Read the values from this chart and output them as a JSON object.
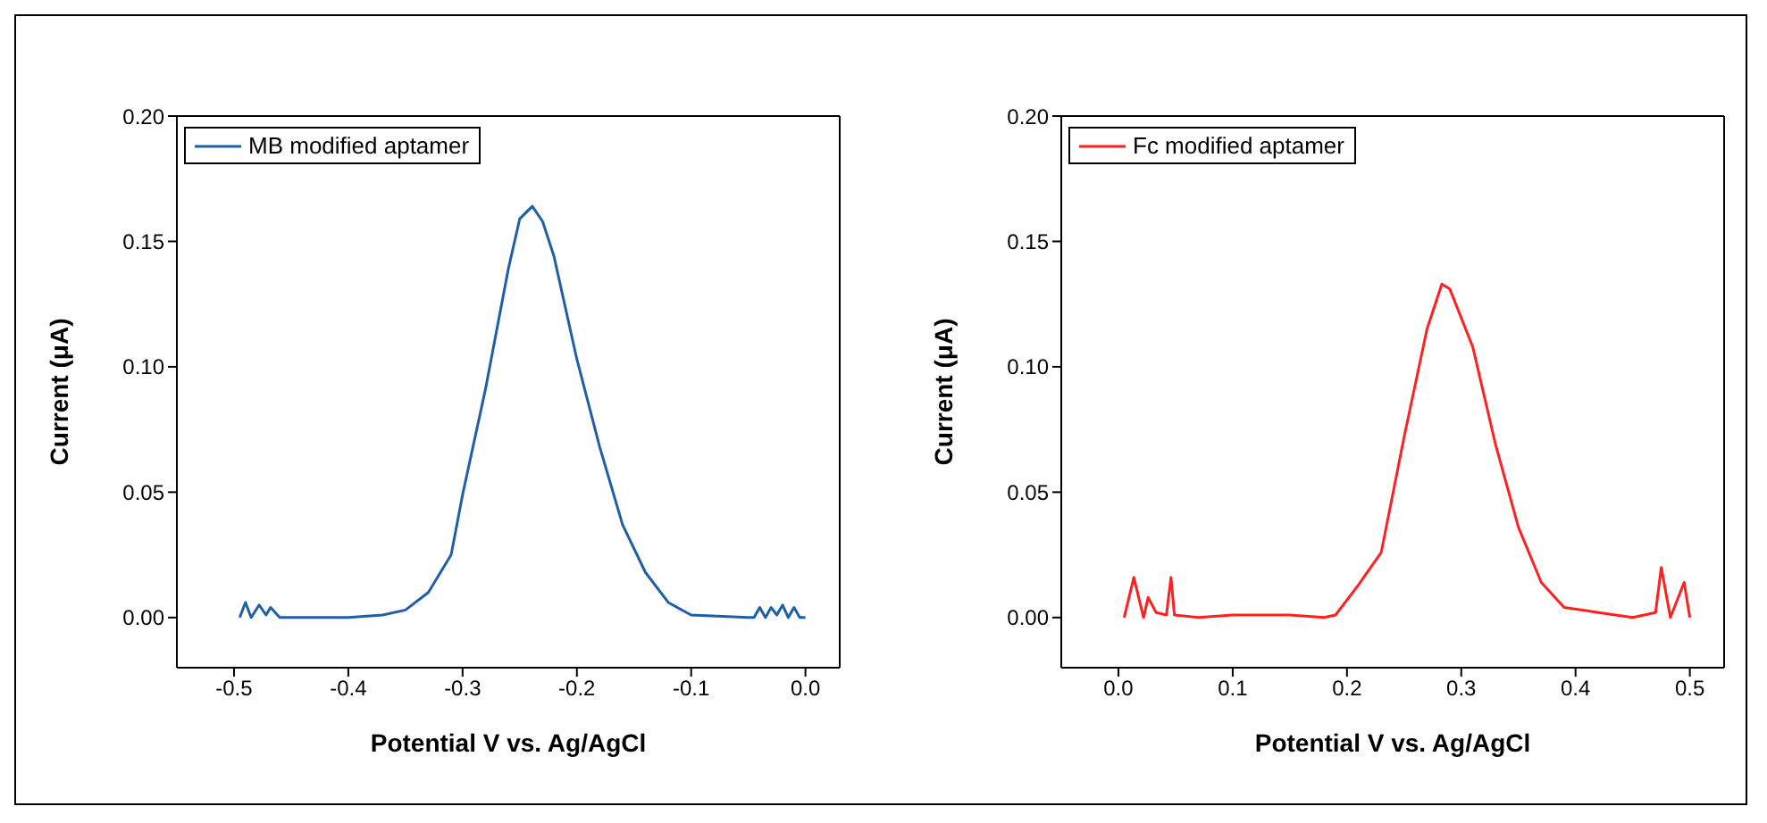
{
  "chart_data": [
    {
      "type": "line",
      "xlabel": "Potential V vs. Ag/AgCl",
      "ylabel": "Current (μA)",
      "xlim": [
        -0.55,
        0.03
      ],
      "xticks": [
        -0.5,
        -0.4,
        -0.3,
        -0.2,
        -0.1,
        {
          "value": 0,
          "label": "0.0"
        }
      ],
      "ylim": [
        -0.02,
        0.2
      ],
      "yticks": [
        {
          "value": 0,
          "label": "0.00"
        },
        {
          "value": 0.05,
          "label": "0.05"
        },
        {
          "value": 0.1,
          "label": "0.10"
        },
        {
          "value": 0.15,
          "label": "0.15"
        },
        {
          "value": 0.2,
          "label": "0.20"
        }
      ],
      "grid": false,
      "legend": "top left",
      "marker": "none",
      "line_style": "solid",
      "series": [
        {
          "name": "MB modified aptamer",
          "color": "#1f5fa8",
          "x": [
            -0.495,
            -0.49,
            -0.485,
            -0.478,
            -0.472,
            -0.468,
            -0.46,
            -0.45,
            -0.4,
            -0.37,
            -0.35,
            -0.33,
            -0.31,
            -0.3,
            -0.28,
            -0.26,
            -0.25,
            -0.239,
            -0.23,
            -0.22,
            -0.2,
            -0.18,
            -0.16,
            -0.14,
            -0.12,
            -0.1,
            -0.05,
            -0.045,
            -0.04,
            -0.035,
            -0.03,
            -0.025,
            -0.02,
            -0.015,
            -0.01,
            -0.005,
            0.0
          ],
          "values": [
            0,
            0.006,
            0,
            0.005,
            0.001,
            0.004,
            0,
            0,
            0,
            0.001,
            0.003,
            0.01,
            0.025,
            0.049,
            0.091,
            0.139,
            0.159,
            0.164,
            0.158,
            0.144,
            0.103,
            0.068,
            0.037,
            0.018,
            0.006,
            0.001,
            0,
            0,
            0.004,
            0,
            0.004,
            0.001,
            0.005,
            0,
            0.004,
            0,
            0
          ]
        }
      ]
    },
    {
      "type": "line",
      "xlabel": "Potential V vs. Ag/AgCl",
      "ylabel": "Current (μA)",
      "xlim": [
        -0.05,
        0.53
      ],
      "xticks": [
        {
          "value": 0,
          "label": "0.0"
        },
        0.1,
        0.2,
        0.3,
        0.4,
        0.5
      ],
      "ylim": [
        -0.02,
        0.2
      ],
      "yticks": [
        {
          "value": 0,
          "label": "0.00"
        },
        {
          "value": 0.05,
          "label": "0.05"
        },
        {
          "value": 0.1,
          "label": "0.10"
        },
        {
          "value": 0.15,
          "label": "0.15"
        },
        {
          "value": 0.2,
          "label": "0.20"
        }
      ],
      "grid": false,
      "legend": "top left",
      "marker": "none",
      "line_style": "solid",
      "series": [
        {
          "name": "Fc modified aptamer",
          "color": "#ff2020",
          "x": [
            0.005,
            0.0135,
            0.022,
            0.026,
            0.033,
            0.042,
            0.046,
            0.049,
            0.07,
            0.1,
            0.15,
            0.18,
            0.19,
            0.21,
            0.23,
            0.25,
            0.27,
            0.283,
            0.29,
            0.31,
            0.33,
            0.35,
            0.37,
            0.39,
            0.42,
            0.45,
            0.47,
            0.475,
            0.483,
            0.495,
            0.5
          ],
          "values": [
            0,
            0.016,
            0,
            0.008,
            0.002,
            0.001,
            0.016,
            0.001,
            0,
            0.001,
            0.001,
            0,
            0.001,
            0.013,
            0.026,
            0.072,
            0.115,
            0.133,
            0.131,
            0.108,
            0.069,
            0.036,
            0.014,
            0.004,
            0.002,
            0,
            0.002,
            0.02,
            0,
            0.014,
            0
          ]
        }
      ]
    }
  ]
}
